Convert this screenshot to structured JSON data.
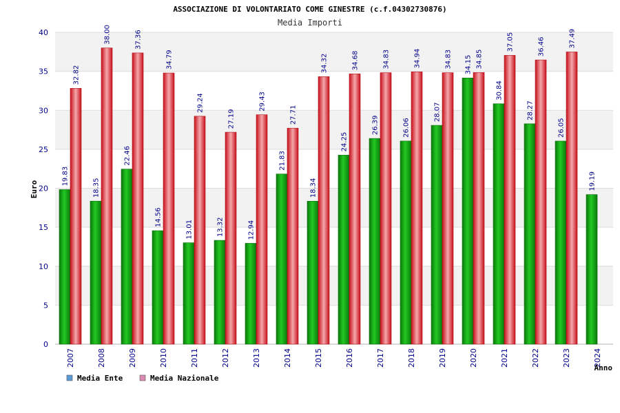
{
  "chart_data": {
    "type": "bar",
    "title": "ASSOCIAZIONE DI VOLONTARIATO COME GINESTRE (c.f.04302730876)",
    "subtitle": "Media Importi",
    "xlabel": "Anno",
    "ylabel": "Euro",
    "ylim": [
      0,
      40
    ],
    "yticks": [
      0,
      5,
      10,
      15,
      20,
      25,
      30,
      35,
      40
    ],
    "grid": true,
    "legend_position": "bottom-left",
    "categories": [
      "2007",
      "2008",
      "2009",
      "2010",
      "2011",
      "2012",
      "2013",
      "2014",
      "2015",
      "2016",
      "2017",
      "2018",
      "2019",
      "2020",
      "2021",
      "2022",
      "2023",
      "2024"
    ],
    "series": [
      {
        "name": "Media Ente",
        "legend_color": "#5b9bd5",
        "color": "#1a9a1a",
        "values": [
          19.83,
          18.35,
          22.46,
          14.56,
          13.01,
          13.32,
          12.94,
          21.83,
          18.34,
          24.25,
          26.39,
          26.06,
          28.07,
          34.15,
          30.84,
          28.27,
          26.05,
          19.19
        ],
        "labels": [
          "19.83",
          "18.35",
          "22.46",
          "14.56",
          "13.01",
          "13.32",
          "12.94",
          "21.83",
          "18.34",
          "24.25",
          "26.39",
          "26.06",
          "28.07",
          "34.15",
          "30.84",
          "28.27",
          "26.05",
          "19.19"
        ]
      },
      {
        "name": "Media Nazionale",
        "legend_color": "#d98cb3",
        "color": "#e0202a",
        "values": [
          32.82,
          38.0,
          37.36,
          34.79,
          29.24,
          27.19,
          29.43,
          27.71,
          34.32,
          34.68,
          34.83,
          34.94,
          34.83,
          34.85,
          37.05,
          36.46,
          37.49,
          null
        ],
        "labels": [
          "32.82",
          "38.00",
          "37.36",
          "34.79",
          "29.24",
          "27.19",
          "29.43",
          "27.71",
          "34.32",
          "34.68",
          "34.83",
          "34.94",
          "34.83",
          "34.85",
          "37.05",
          "36.46",
          "37.49",
          ""
        ]
      }
    ]
  }
}
